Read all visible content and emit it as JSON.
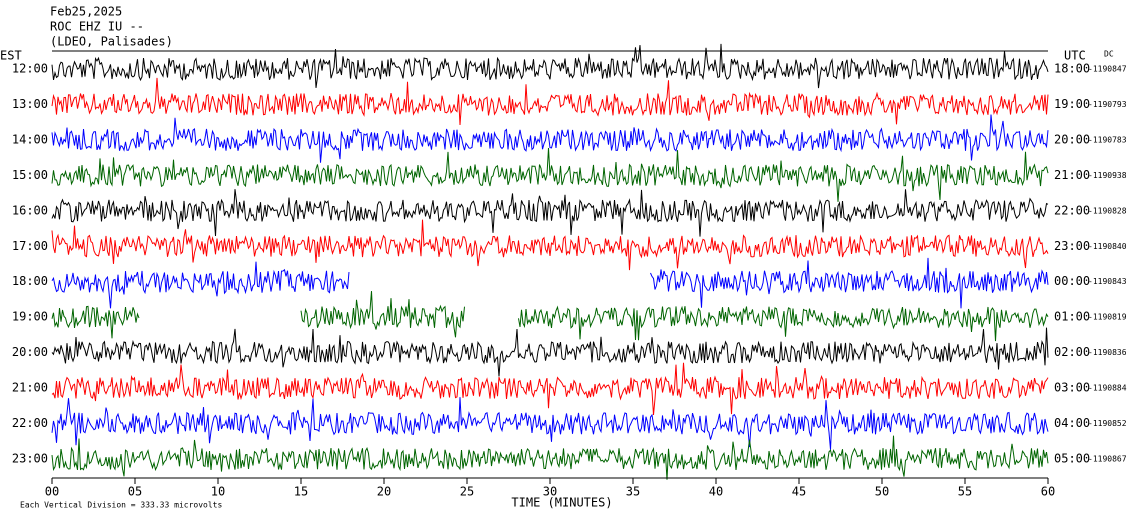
{
  "chart_data": {
    "type": "helicorder",
    "title_lines": [
      "Feb25,2025",
      "ROC EHZ IU --",
      "(LDEO, Palisades)"
    ],
    "left_axis_label": "EST",
    "right_axis_label": "UTC",
    "right_corner_label": "DC",
    "colors": [
      "#000000",
      "#ff0000",
      "#0000ff",
      "#006400"
    ],
    "rows": [
      {
        "est": "12:00",
        "utc": "18:00",
        "offset": "-1190847"
      },
      {
        "est": "13:00",
        "utc": "19:00",
        "offset": "-1190793"
      },
      {
        "est": "14:00",
        "utc": "20:00",
        "offset": "-1190783"
      },
      {
        "est": "15:00",
        "utc": "21:00",
        "offset": "-1190938"
      },
      {
        "est": "16:00",
        "utc": "22:00",
        "offset": "-1190828"
      },
      {
        "est": "17:00",
        "utc": "23:00",
        "offset": "-1190840"
      },
      {
        "est": "18:00",
        "utc": "00:00",
        "offset": "-1190843"
      },
      {
        "est": "19:00",
        "utc": "01:00",
        "offset": "-1190819"
      },
      {
        "est": "20:00",
        "utc": "02:00",
        "offset": "-1190836"
      },
      {
        "est": "21:00",
        "utc": "03:00",
        "offset": "-1190884"
      },
      {
        "est": "22:00",
        "utc": "04:00",
        "offset": "-1190852"
      },
      {
        "est": "23:00",
        "utc": "05:00",
        "offset": "-1190867"
      }
    ],
    "xlim": [
      0,
      60
    ],
    "xticks": [
      {
        "value": 0,
        "label": "00"
      },
      {
        "value": 5,
        "label": "05"
      },
      10,
      15,
      20,
      25,
      30,
      35,
      40,
      45,
      50,
      55,
      60
    ],
    "x_label": "TIME (MINUTES)",
    "footer": "Each Vertical Division = 333.33 microvolts"
  }
}
